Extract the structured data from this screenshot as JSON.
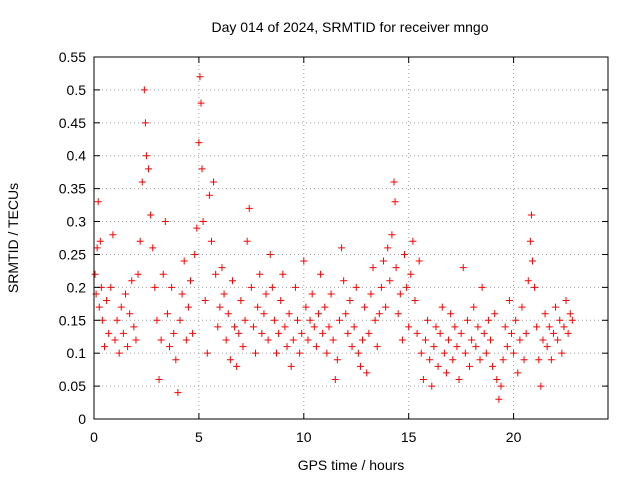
{
  "chart_data": {
    "type": "scatter",
    "title": "Day 014 of 2024, SRMTID for receiver mngo",
    "xlabel": "GPS time / hours",
    "ylabel": "SRMTID / TECUs",
    "xlim": [
      0,
      24.5
    ],
    "ylim": [
      0,
      0.55
    ],
    "xticks": [
      0,
      5,
      10,
      15,
      20
    ],
    "xtick_labels": [
      "0",
      "5",
      "10",
      "15",
      "20"
    ],
    "yticks": [
      0,
      0.05,
      0.1,
      0.15,
      0.2,
      0.25,
      0.3,
      0.35,
      0.4,
      0.45,
      0.5,
      0.55
    ],
    "ytick_labels": [
      "0",
      "0.05",
      "0.1",
      "0.15",
      "0.2",
      "0.25",
      "0.3",
      "0.35",
      "0.4",
      "0.45",
      "0.5",
      "0.55"
    ],
    "grid": true,
    "marker": "+",
    "color": "#ff0000",
    "series": [
      {
        "name": "SRMTID",
        "points": [
          [
            0.05,
            0.22
          ],
          [
            0.1,
            0.19
          ],
          [
            0.15,
            0.26
          ],
          [
            0.2,
            0.33
          ],
          [
            0.25,
            0.17
          ],
          [
            0.3,
            0.27
          ],
          [
            0.35,
            0.2
          ],
          [
            0.4,
            0.15
          ],
          [
            0.5,
            0.11
          ],
          [
            0.6,
            0.18
          ],
          [
            0.7,
            0.13
          ],
          [
            0.8,
            0.2
          ],
          [
            0.9,
            0.28
          ],
          [
            1.0,
            0.12
          ],
          [
            1.1,
            0.15
          ],
          [
            1.2,
            0.1
          ],
          [
            1.3,
            0.17
          ],
          [
            1.4,
            0.13
          ],
          [
            1.5,
            0.19
          ],
          [
            1.6,
            0.11
          ],
          [
            1.7,
            0.16
          ],
          [
            1.8,
            0.21
          ],
          [
            1.9,
            0.14
          ],
          [
            2.0,
            0.12
          ],
          [
            2.1,
            0.22
          ],
          [
            2.2,
            0.27
          ],
          [
            2.3,
            0.36
          ],
          [
            2.4,
            0.5
          ],
          [
            2.45,
            0.45
          ],
          [
            2.5,
            0.4
          ],
          [
            2.6,
            0.38
          ],
          [
            2.7,
            0.31
          ],
          [
            2.8,
            0.26
          ],
          [
            2.9,
            0.2
          ],
          [
            3.0,
            0.15
          ],
          [
            3.1,
            0.06
          ],
          [
            3.2,
            0.12
          ],
          [
            3.3,
            0.22
          ],
          [
            3.4,
            0.3
          ],
          [
            3.5,
            0.16
          ],
          [
            3.6,
            0.11
          ],
          [
            3.7,
            0.2
          ],
          [
            3.8,
            0.13
          ],
          [
            3.9,
            0.09
          ],
          [
            4.0,
            0.04
          ],
          [
            4.1,
            0.15
          ],
          [
            4.2,
            0.19
          ],
          [
            4.3,
            0.24
          ],
          [
            4.4,
            0.12
          ],
          [
            4.5,
            0.17
          ],
          [
            4.6,
            0.21
          ],
          [
            4.7,
            0.13
          ],
          [
            4.8,
            0.25
          ],
          [
            4.9,
            0.29
          ],
          [
            5.0,
            0.42
          ],
          [
            5.05,
            0.52
          ],
          [
            5.1,
            0.48
          ],
          [
            5.15,
            0.38
          ],
          [
            5.2,
            0.3
          ],
          [
            5.3,
            0.18
          ],
          [
            5.4,
            0.1
          ],
          [
            5.5,
            0.34
          ],
          [
            5.6,
            0.27
          ],
          [
            5.7,
            0.36
          ],
          [
            5.8,
            0.22
          ],
          [
            5.9,
            0.14
          ],
          [
            6.0,
            0.17
          ],
          [
            6.1,
            0.23
          ],
          [
            6.2,
            0.19
          ],
          [
            6.3,
            0.12
          ],
          [
            6.4,
            0.16
          ],
          [
            6.5,
            0.09
          ],
          [
            6.6,
            0.21
          ],
          [
            6.7,
            0.14
          ],
          [
            6.8,
            0.08
          ],
          [
            6.9,
            0.13
          ],
          [
            7.0,
            0.18
          ],
          [
            7.1,
            0.11
          ],
          [
            7.2,
            0.15
          ],
          [
            7.3,
            0.27
          ],
          [
            7.4,
            0.32
          ],
          [
            7.5,
            0.2
          ],
          [
            7.6,
            0.14
          ],
          [
            7.7,
            0.1
          ],
          [
            7.8,
            0.17
          ],
          [
            7.9,
            0.22
          ],
          [
            8.0,
            0.13
          ],
          [
            8.1,
            0.16
          ],
          [
            8.2,
            0.19
          ],
          [
            8.3,
            0.12
          ],
          [
            8.4,
            0.25
          ],
          [
            8.5,
            0.2
          ],
          [
            8.6,
            0.15
          ],
          [
            8.7,
            0.1
          ],
          [
            8.8,
            0.13
          ],
          [
            8.9,
            0.18
          ],
          [
            9.0,
            0.22
          ],
          [
            9.1,
            0.14
          ],
          [
            9.2,
            0.11
          ],
          [
            9.3,
            0.16
          ],
          [
            9.4,
            0.08
          ],
          [
            9.5,
            0.12
          ],
          [
            9.6,
            0.2
          ],
          [
            9.7,
            0.15
          ],
          [
            9.8,
            0.1
          ],
          [
            9.9,
            0.13
          ],
          [
            10.0,
            0.24
          ],
          [
            10.1,
            0.17
          ],
          [
            10.2,
            0.12
          ],
          [
            10.3,
            0.15
          ],
          [
            10.4,
            0.19
          ],
          [
            10.5,
            0.14
          ],
          [
            10.6,
            0.11
          ],
          [
            10.7,
            0.16
          ],
          [
            10.8,
            0.22
          ],
          [
            10.9,
            0.13
          ],
          [
            11.0,
            0.17
          ],
          [
            11.1,
            0.1
          ],
          [
            11.2,
            0.14
          ],
          [
            11.3,
            0.19
          ],
          [
            11.4,
            0.12
          ],
          [
            11.5,
            0.06
          ],
          [
            11.6,
            0.09
          ],
          [
            11.7,
            0.15
          ],
          [
            11.8,
            0.26
          ],
          [
            11.9,
            0.21
          ],
          [
            12.0,
            0.16
          ],
          [
            12.1,
            0.13
          ],
          [
            12.2,
            0.18
          ],
          [
            12.3,
            0.11
          ],
          [
            12.4,
            0.14
          ],
          [
            12.5,
            0.2
          ],
          [
            12.6,
            0.1
          ],
          [
            12.7,
            0.08
          ],
          [
            12.8,
            0.12
          ],
          [
            12.9,
            0.17
          ],
          [
            13.0,
            0.07
          ],
          [
            13.1,
            0.13
          ],
          [
            13.2,
            0.19
          ],
          [
            13.3,
            0.23
          ],
          [
            13.4,
            0.15
          ],
          [
            13.5,
            0.11
          ],
          [
            13.6,
            0.16
          ],
          [
            13.7,
            0.2
          ],
          [
            13.8,
            0.24
          ],
          [
            13.9,
            0.17
          ],
          [
            14.0,
            0.26
          ],
          [
            14.1,
            0.21
          ],
          [
            14.2,
            0.28
          ],
          [
            14.3,
            0.36
          ],
          [
            14.35,
            0.33
          ],
          [
            14.4,
            0.23
          ],
          [
            14.5,
            0.16
          ],
          [
            14.6,
            0.19
          ],
          [
            14.7,
            0.12
          ],
          [
            14.8,
            0.25
          ],
          [
            14.9,
            0.2
          ],
          [
            15.0,
            0.14
          ],
          [
            15.1,
            0.22
          ],
          [
            15.2,
            0.27
          ],
          [
            15.3,
            0.18
          ],
          [
            15.4,
            0.13
          ],
          [
            15.5,
            0.24
          ],
          [
            15.6,
            0.1
          ],
          [
            15.7,
            0.06
          ],
          [
            15.8,
            0.12
          ],
          [
            15.9,
            0.15
          ],
          [
            16.0,
            0.09
          ],
          [
            16.1,
            0.05
          ],
          [
            16.2,
            0.11
          ],
          [
            16.3,
            0.14
          ],
          [
            16.4,
            0.08
          ],
          [
            16.5,
            0.13
          ],
          [
            16.6,
            0.17
          ],
          [
            16.7,
            0.1
          ],
          [
            16.8,
            0.07
          ],
          [
            16.9,
            0.12
          ],
          [
            17.0,
            0.16
          ],
          [
            17.1,
            0.09
          ],
          [
            17.2,
            0.14
          ],
          [
            17.3,
            0.11
          ],
          [
            17.4,
            0.06
          ],
          [
            17.5,
            0.13
          ],
          [
            17.6,
            0.23
          ],
          [
            17.7,
            0.1
          ],
          [
            17.8,
            0.15
          ],
          [
            17.9,
            0.08
          ],
          [
            18.0,
            0.12
          ],
          [
            18.1,
            0.17
          ],
          [
            18.2,
            0.11
          ],
          [
            18.3,
            0.14
          ],
          [
            18.4,
            0.09
          ],
          [
            18.5,
            0.2
          ],
          [
            18.6,
            0.13
          ],
          [
            18.7,
            0.1
          ],
          [
            18.8,
            0.15
          ],
          [
            18.9,
            0.12
          ],
          [
            19.0,
            0.08
          ],
          [
            19.1,
            0.16
          ],
          [
            19.2,
            0.06
          ],
          [
            19.3,
            0.03
          ],
          [
            19.4,
            0.05
          ],
          [
            19.5,
            0.09
          ],
          [
            19.6,
            0.14
          ],
          [
            19.7,
            0.11
          ],
          [
            19.8,
            0.18
          ],
          [
            19.9,
            0.13
          ],
          [
            20.0,
            0.1
          ],
          [
            20.1,
            0.15
          ],
          [
            20.2,
            0.07
          ],
          [
            20.3,
            0.12
          ],
          [
            20.4,
            0.17
          ],
          [
            20.5,
            0.09
          ],
          [
            20.6,
            0.13
          ],
          [
            20.7,
            0.21
          ],
          [
            20.8,
            0.27
          ],
          [
            20.85,
            0.31
          ],
          [
            20.9,
            0.24
          ],
          [
            21.0,
            0.2
          ],
          [
            21.1,
            0.14
          ],
          [
            21.2,
            0.09
          ],
          [
            21.3,
            0.05
          ],
          [
            21.4,
            0.12
          ],
          [
            21.5,
            0.16
          ],
          [
            21.6,
            0.11
          ],
          [
            21.7,
            0.14
          ],
          [
            21.8,
            0.09
          ],
          [
            21.9,
            0.13
          ],
          [
            22.0,
            0.17
          ],
          [
            22.1,
            0.12
          ],
          [
            22.2,
            0.15
          ],
          [
            22.3,
            0.1
          ],
          [
            22.4,
            0.14
          ],
          [
            22.5,
            0.18
          ],
          [
            22.6,
            0.13
          ],
          [
            22.7,
            0.16
          ],
          [
            22.8,
            0.15
          ]
        ]
      }
    ]
  }
}
